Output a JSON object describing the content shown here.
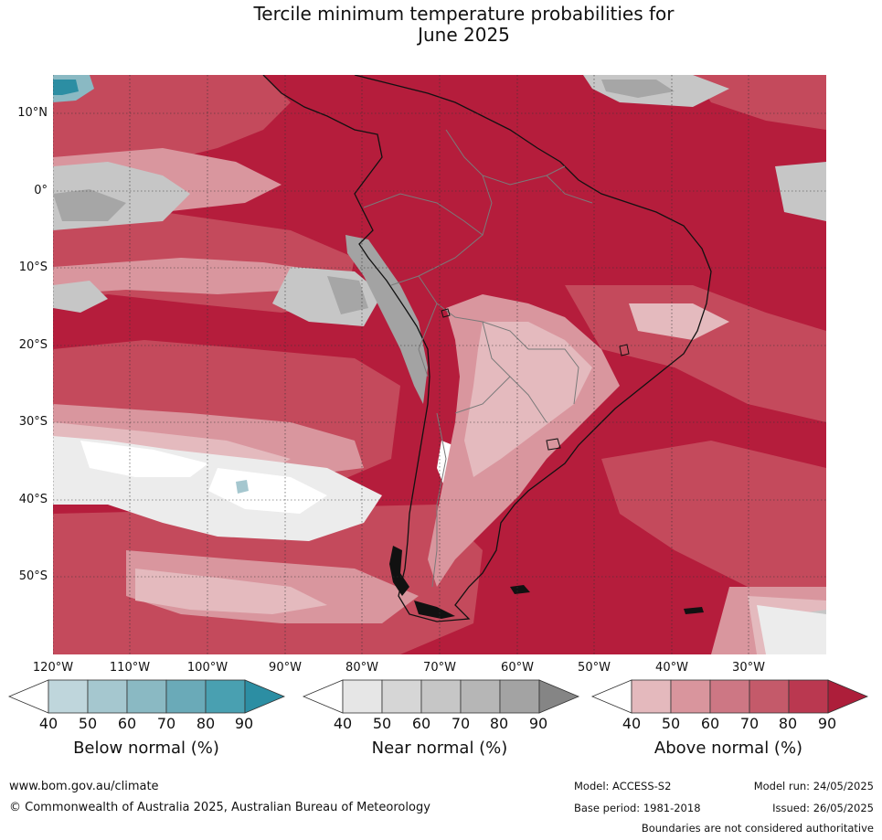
{
  "title_line1": "Tercile minimum temperature probabilities for",
  "title_line2": "June 2025",
  "map": {
    "lat_labels": [
      "10°N",
      "0°",
      "10°S",
      "20°S",
      "30°S",
      "40°S",
      "50°S"
    ],
    "lon_labels": [
      "120°W",
      "110°W",
      "100°W",
      "90°W",
      "80°W",
      "70°W",
      "60°W",
      "50°W",
      "40°W",
      "30°W"
    ],
    "region": "South America",
    "colors": {
      "ocean_base": "#b51d3c",
      "land_border": "#111111",
      "country_border": "#7a7a7a"
    }
  },
  "colorbars": [
    {
      "title": "Below normal (%)",
      "ticks": [
        "40",
        "50",
        "60",
        "70",
        "80",
        "90"
      ],
      "colors": [
        "#ffffff",
        "#bfd6dc",
        "#a5c7cf",
        "#8ab9c3",
        "#6aaab8",
        "#49a0b1",
        "#2c8ea3"
      ]
    },
    {
      "title": "Near normal (%)",
      "ticks": [
        "40",
        "50",
        "60",
        "70",
        "80",
        "90"
      ],
      "colors": [
        "#ffffff",
        "#e6e6e6",
        "#d6d6d6",
        "#c6c6c6",
        "#b6b6b6",
        "#a3a3a3",
        "#858585"
      ]
    },
    {
      "title": "Above normal (%)",
      "ticks": [
        "40",
        "50",
        "60",
        "70",
        "80",
        "90"
      ],
      "colors": [
        "#ffffff",
        "#e4b9bd",
        "#d9959d",
        "#cd7784",
        "#c45a6a",
        "#ba3850",
        "#ad1e3a"
      ]
    }
  ],
  "footer": {
    "website": "www.bom.gov.au/climate",
    "copyright": "© Commonwealth of Australia 2025, Australian Bureau of Meteorology",
    "model": "Model: ACCESS-S2",
    "base_period": "Base period: 1981-2018",
    "model_run": "Model run: 24/05/2025",
    "issued": "Issued: 26/05/2025",
    "disclaimer": "Boundaries are not considered authoritative"
  }
}
